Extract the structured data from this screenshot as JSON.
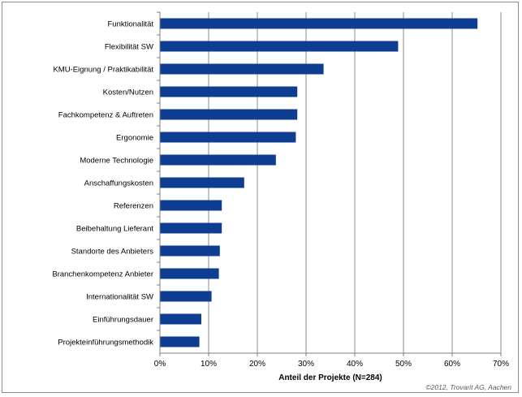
{
  "chart_data": {
    "type": "bar",
    "orientation": "horizontal",
    "title": "",
    "categories": [
      "Funktionalität",
      "Flexibilität SW",
      "KMU-Eignung / Praktikabilität",
      "Kosten/Nutzen",
      "Fachkompetenz & Auftreten",
      "Ergonomie",
      "Moderne Technologie",
      "Anschaffungskosten",
      "Referenzen",
      "Beibehaltung Lieferant",
      "Standorte des Anbieters",
      "Branchenkompetenz Anbieter",
      "Internationalität SW",
      "Einführungsdauer",
      "Projekteinführungsmethodik"
    ],
    "values": [
      65.2,
      48.9,
      33.6,
      28.2,
      28.2,
      27.9,
      23.8,
      17.3,
      12.7,
      12.7,
      12.3,
      12.1,
      10.6,
      8.5,
      8.1
    ],
    "xlabel": "Anteil der Projekte  (N=284)",
    "ylabel": "",
    "xlim": [
      0,
      70
    ],
    "x_ticks": [
      "0%",
      "10%",
      "20%",
      "30%",
      "40%",
      "50%",
      "60%",
      "70%"
    ],
    "grid": "vertical",
    "bar_color": "#0f3d91",
    "credit": "©2012, Trovarit AG, Aachen"
  }
}
